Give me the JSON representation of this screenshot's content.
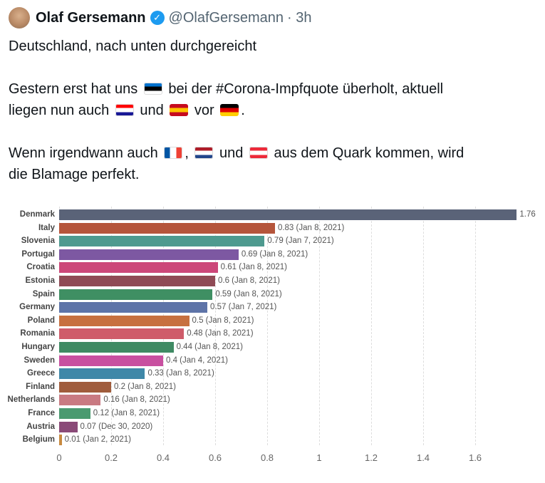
{
  "tweet": {
    "name": "Olaf Gersemann",
    "handle": "@OlafGersemann",
    "time": "· 3h",
    "lines": [
      "Deutschland, nach unten durchgereicht",
      "",
      "Gestern erst hat uns",
      "bei der #Corona-Impfquote überholt, aktuell",
      "liegen nun auch",
      "und",
      "vor",
      ".",
      "",
      "Wenn irgendwann auch",
      ",",
      "und",
      "aus dem Quark kommen, wird",
      "die Blamage perfekt."
    ],
    "flags": {
      "estonia": [
        "#0072ce",
        "#000000",
        "#ffffff"
      ],
      "croatia": [
        "#ff0000",
        "#ffffff",
        "#171796"
      ],
      "spain": [
        "#c60b1e",
        "#ffc400",
        "#c60b1e"
      ],
      "germany": [
        "#000000",
        "#dd0000",
        "#ffce00"
      ],
      "france": [
        "#0055a4",
        "#ffffff",
        "#ef4135"
      ],
      "netherlands": [
        "#ae1c28",
        "#ffffff",
        "#21468b"
      ],
      "austria": [
        "#ed2939",
        "#ffffff",
        "#ed2939"
      ]
    }
  },
  "chart_data": {
    "type": "bar",
    "orientation": "horizontal",
    "xlim": [
      0,
      1.76
    ],
    "grid": true,
    "ticks": [
      "0",
      "0.2",
      "0.4",
      "0.6",
      "0.8",
      "1",
      "1.2",
      "1.4",
      "1.6"
    ],
    "categories": [
      "Denmark",
      "Italy",
      "Slovenia",
      "Portugal",
      "Croatia",
      "Estonia",
      "Spain",
      "Germany",
      "Poland",
      "Romania",
      "Hungary",
      "Sweden",
      "Greece",
      "Finland",
      "Netherlands",
      "France",
      "Austria",
      "Belgium"
    ],
    "values": [
      1.76,
      0.83,
      0.79,
      0.69,
      0.61,
      0.6,
      0.59,
      0.57,
      0.5,
      0.48,
      0.44,
      0.4,
      0.33,
      0.2,
      0.16,
      0.12,
      0.07,
      0.01
    ],
    "labels": [
      "1.76",
      "0.83 (Jan 8, 2021)",
      "0.79 (Jan 7, 2021)",
      "0.69 (Jan 8, 2021)",
      "0.61 (Jan 8, 2021)",
      "0.6 (Jan 8, 2021)",
      "0.59 (Jan 8, 2021)",
      "0.57 (Jan 7, 2021)",
      "0.5 (Jan 8, 2021)",
      "0.48 (Jan 8, 2021)",
      "0.44 (Jan 8, 2021)",
      "0.4 (Jan 4, 2021)",
      "0.33 (Jan 8, 2021)",
      "0.2 (Jan 8, 2021)",
      "0.16 (Jan 8, 2021)",
      "0.12 (Jan 8, 2021)",
      "0.07 (Dec 30, 2020)",
      "0.01 (Jan 2, 2021)"
    ],
    "colors": [
      "#5a6378",
      "#b5553b",
      "#4e9a8f",
      "#7d58a2",
      "#cc4779",
      "#8f4a55",
      "#3f8f63",
      "#5e74a8",
      "#c7703f",
      "#cf5c6a",
      "#3f8a63",
      "#c850a0",
      "#3f88a8",
      "#a05c3c",
      "#c97a82",
      "#4a9a70",
      "#8a4a78",
      "#c88a40"
    ]
  }
}
